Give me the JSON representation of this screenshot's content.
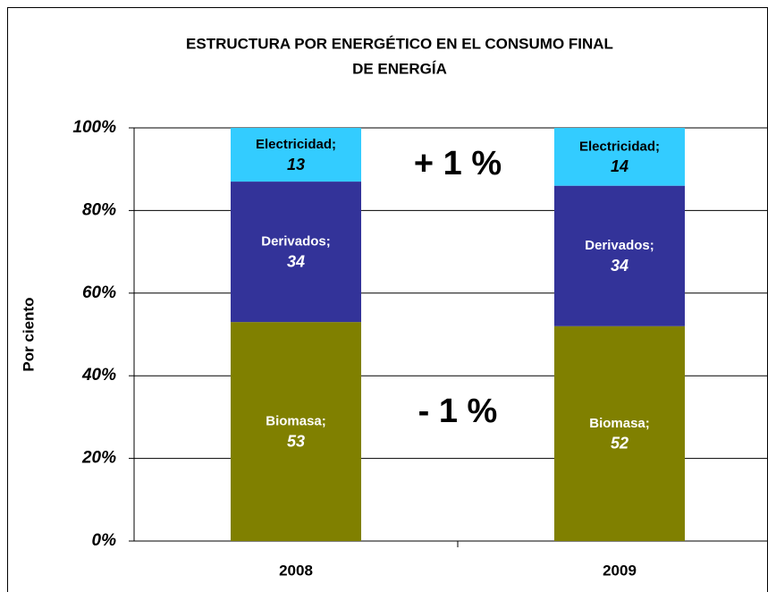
{
  "chart_data": {
    "type": "stacked_bar",
    "title": [
      "ESTRUCTURA POR ENERGÉTICO EN EL CONSUMO FINAL",
      "DE ENERGÍA"
    ],
    "y_label": "Por ciento",
    "categories": [
      "2008",
      "2009"
    ],
    "series": [
      {
        "name": "Biomasa;",
        "color": "#808000",
        "label_color": "#ffffff",
        "values": [
          53,
          52
        ]
      },
      {
        "name": "Derivados;",
        "color": "#333399",
        "label_color": "#ffffff",
        "values": [
          34,
          34
        ]
      },
      {
        "name": "Electricidad;",
        "color": "#33ccff",
        "label_color": "#000000",
        "values": [
          13,
          14
        ]
      }
    ],
    "ylim": [
      0,
      100
    ],
    "yticks": [
      {
        "value": 0,
        "label": "0%"
      },
      {
        "value": 20,
        "label": "20%"
      },
      {
        "value": 40,
        "label": "40%"
      },
      {
        "value": 60,
        "label": "60%"
      },
      {
        "value": 80,
        "label": "80%"
      },
      {
        "value": 100,
        "label": "100%"
      }
    ],
    "grid": true,
    "annotations": [
      "+ 1 %",
      "- 1 %"
    ]
  }
}
